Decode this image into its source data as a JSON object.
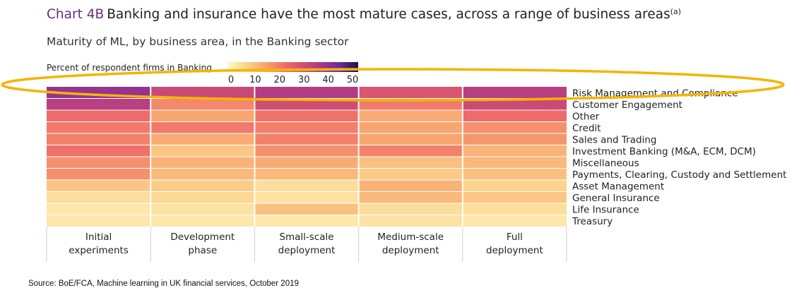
{
  "title_number": "Chart 4B",
  "title_text": "Banking and insurance have the most mature cases, across a range of business areas",
  "title_note": "(a)",
  "subtitle": "Maturity of ML, by business area, in the Banking sector",
  "source": "Source: BoE/FCA, Machine learning in UK financial services, October 2019",
  "colors": {
    "title_accent": "#6a2d7e",
    "highlight_ellipse": "#f5b400",
    "scale": [
      "#fdf6c3",
      "#fcd28a",
      "#f7a46f",
      "#ef6f6a",
      "#d24f72",
      "#a8378a",
      "#6d2a9a",
      "#1e1240"
    ]
  },
  "chart_data": {
    "type": "heatmap",
    "legend_title": "Percent of respondent firms in Banking",
    "scale_ticks": [
      "0",
      "10",
      "20",
      "30",
      "40",
      "50"
    ],
    "scale_range": [
      0,
      50
    ],
    "columns": [
      "Initial experiments",
      "Development phase",
      "Small-scale deployment",
      "Medium-scale deployment",
      "Full deployment"
    ],
    "rows": [
      "Risk Management and Compliance",
      "Customer Engagement",
      "Other",
      "Credit",
      "Sales and Trading",
      "Investment Banking (M&A, ECM, DCM)",
      "Miscellaneous",
      "Payments, Clearing, Custody and Settlement",
      "Asset Management",
      "General Insurance",
      "Life Insurance",
      "Treasury"
    ],
    "values": [
      [
        38,
        30,
        34,
        27,
        33
      ],
      [
        33,
        18,
        29,
        20,
        30
      ],
      [
        22,
        14,
        21,
        13,
        22
      ],
      [
        20,
        20,
        19,
        14,
        17
      ],
      [
        19,
        13,
        19,
        14,
        16
      ],
      [
        21,
        9,
        17,
        19,
        12
      ],
      [
        17,
        12,
        13,
        10,
        11
      ],
      [
        17,
        11,
        11,
        8,
        10
      ],
      [
        9,
        8,
        5,
        12,
        7
      ],
      [
        5,
        6,
        4,
        11,
        9
      ],
      [
        3,
        4,
        10,
        5,
        5
      ],
      [
        3,
        3,
        3,
        4,
        3
      ]
    ]
  }
}
